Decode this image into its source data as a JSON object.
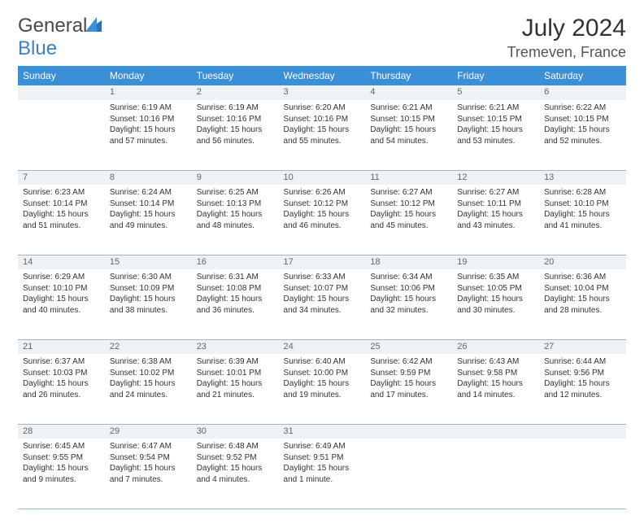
{
  "logo": {
    "word1": "General",
    "word2": "Blue"
  },
  "title": "July 2024",
  "location": "Tremeven, France",
  "colors": {
    "header_bg": "#3b8fd6",
    "header_fg": "#ffffff",
    "daynum_bg": "#eef2f5",
    "daynum_fg": "#666666",
    "border": "#9fb8cc",
    "text": "#333333",
    "logo_gray": "#4a4a4a",
    "logo_blue": "#3b7fc4"
  },
  "dow": [
    "Sunday",
    "Monday",
    "Tuesday",
    "Wednesday",
    "Thursday",
    "Friday",
    "Saturday"
  ],
  "weeks": [
    [
      null,
      {
        "n": "1",
        "sr": "6:19 AM",
        "ss": "10:16 PM",
        "dh": "15",
        "dm": "57"
      },
      {
        "n": "2",
        "sr": "6:19 AM",
        "ss": "10:16 PM",
        "dh": "15",
        "dm": "56"
      },
      {
        "n": "3",
        "sr": "6:20 AM",
        "ss": "10:16 PM",
        "dh": "15",
        "dm": "55"
      },
      {
        "n": "4",
        "sr": "6:21 AM",
        "ss": "10:15 PM",
        "dh": "15",
        "dm": "54"
      },
      {
        "n": "5",
        "sr": "6:21 AM",
        "ss": "10:15 PM",
        "dh": "15",
        "dm": "53"
      },
      {
        "n": "6",
        "sr": "6:22 AM",
        "ss": "10:15 PM",
        "dh": "15",
        "dm": "52"
      }
    ],
    [
      {
        "n": "7",
        "sr": "6:23 AM",
        "ss": "10:14 PM",
        "dh": "15",
        "dm": "51"
      },
      {
        "n": "8",
        "sr": "6:24 AM",
        "ss": "10:14 PM",
        "dh": "15",
        "dm": "49"
      },
      {
        "n": "9",
        "sr": "6:25 AM",
        "ss": "10:13 PM",
        "dh": "15",
        "dm": "48"
      },
      {
        "n": "10",
        "sr": "6:26 AM",
        "ss": "10:12 PM",
        "dh": "15",
        "dm": "46"
      },
      {
        "n": "11",
        "sr": "6:27 AM",
        "ss": "10:12 PM",
        "dh": "15",
        "dm": "45"
      },
      {
        "n": "12",
        "sr": "6:27 AM",
        "ss": "10:11 PM",
        "dh": "15",
        "dm": "43"
      },
      {
        "n": "13",
        "sr": "6:28 AM",
        "ss": "10:10 PM",
        "dh": "15",
        "dm": "41"
      }
    ],
    [
      {
        "n": "14",
        "sr": "6:29 AM",
        "ss": "10:10 PM",
        "dh": "15",
        "dm": "40"
      },
      {
        "n": "15",
        "sr": "6:30 AM",
        "ss": "10:09 PM",
        "dh": "15",
        "dm": "38"
      },
      {
        "n": "16",
        "sr": "6:31 AM",
        "ss": "10:08 PM",
        "dh": "15",
        "dm": "36"
      },
      {
        "n": "17",
        "sr": "6:33 AM",
        "ss": "10:07 PM",
        "dh": "15",
        "dm": "34"
      },
      {
        "n": "18",
        "sr": "6:34 AM",
        "ss": "10:06 PM",
        "dh": "15",
        "dm": "32"
      },
      {
        "n": "19",
        "sr": "6:35 AM",
        "ss": "10:05 PM",
        "dh": "15",
        "dm": "30"
      },
      {
        "n": "20",
        "sr": "6:36 AM",
        "ss": "10:04 PM",
        "dh": "15",
        "dm": "28"
      }
    ],
    [
      {
        "n": "21",
        "sr": "6:37 AM",
        "ss": "10:03 PM",
        "dh": "15",
        "dm": "26"
      },
      {
        "n": "22",
        "sr": "6:38 AM",
        "ss": "10:02 PM",
        "dh": "15",
        "dm": "24"
      },
      {
        "n": "23",
        "sr": "6:39 AM",
        "ss": "10:01 PM",
        "dh": "15",
        "dm": "21"
      },
      {
        "n": "24",
        "sr": "6:40 AM",
        "ss": "10:00 PM",
        "dh": "15",
        "dm": "19"
      },
      {
        "n": "25",
        "sr": "6:42 AM",
        "ss": "9:59 PM",
        "dh": "15",
        "dm": "17"
      },
      {
        "n": "26",
        "sr": "6:43 AM",
        "ss": "9:58 PM",
        "dh": "15",
        "dm": "14"
      },
      {
        "n": "27",
        "sr": "6:44 AM",
        "ss": "9:56 PM",
        "dh": "15",
        "dm": "12"
      }
    ],
    [
      {
        "n": "28",
        "sr": "6:45 AM",
        "ss": "9:55 PM",
        "dh": "15",
        "dm": "9"
      },
      {
        "n": "29",
        "sr": "6:47 AM",
        "ss": "9:54 PM",
        "dh": "15",
        "dm": "7"
      },
      {
        "n": "30",
        "sr": "6:48 AM",
        "ss": "9:52 PM",
        "dh": "15",
        "dm": "4"
      },
      {
        "n": "31",
        "sr": "6:49 AM",
        "ss": "9:51 PM",
        "dh": "15",
        "dm": "1"
      },
      null,
      null,
      null
    ]
  ],
  "labels": {
    "sunrise": "Sunrise:",
    "sunset": "Sunset:",
    "daylight": "Daylight:",
    "hours_and": "hours and",
    "minutes": "minutes.",
    "minute": "minute.",
    "hours": "hours"
  }
}
